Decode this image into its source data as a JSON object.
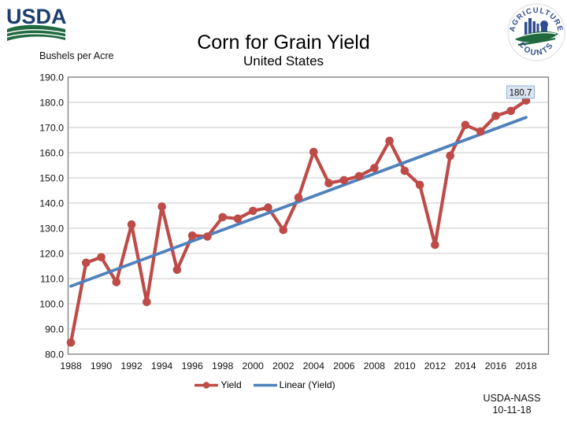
{
  "branding": {
    "usda_logo_text": "USDA",
    "badge_top_text": "AGRICULTURE",
    "badge_bottom_text": "COUNTS"
  },
  "header": {
    "title": "Corn for Grain Yield",
    "subtitle": "United States"
  },
  "chart_data": {
    "type": "line",
    "title": "Corn for Grain Yield",
    "subtitle": "United States",
    "ylabel": "Bushels per Acre",
    "xlabel": "",
    "ylim": [
      80,
      190
    ],
    "ytick_step": 10,
    "grid": "horizontal",
    "legend_position": "bottom-center",
    "x": [
      1988,
      1989,
      1990,
      1991,
      1992,
      1993,
      1994,
      1995,
      1996,
      1997,
      1998,
      1999,
      2000,
      2001,
      2002,
      2003,
      2004,
      2005,
      2006,
      2007,
      2008,
      2009,
      2010,
      2011,
      2012,
      2013,
      2014,
      2015,
      2016,
      2017,
      2018
    ],
    "series": [
      {
        "name": "Yield",
        "color": "#BE4B48",
        "markers": true,
        "values": [
          84.6,
          116.3,
          118.5,
          108.6,
          131.5,
          100.7,
          138.6,
          113.5,
          127.1,
          126.7,
          134.4,
          133.8,
          136.9,
          138.2,
          129.3,
          142.2,
          160.3,
          147.9,
          149.1,
          150.7,
          153.9,
          164.7,
          152.8,
          147.2,
          123.4,
          158.8,
          171.0,
          168.4,
          174.6,
          176.6,
          180.7
        ]
      },
      {
        "name": "Linear (Yield)",
        "color": "#4F81BD",
        "markers": false,
        "trendline": true,
        "start_value": 107.0,
        "end_value": 174.0
      }
    ],
    "end_label": "180.7",
    "ytick_labels": [
      "190.0",
      "180.0",
      "170.0",
      "160.0",
      "150.0",
      "140.0",
      "130.0",
      "120.0",
      "110.0",
      "100.0",
      "90.0",
      "80.0"
    ],
    "xtick_labels": [
      "1988",
      "1990",
      "1992",
      "1994",
      "1996",
      "1998",
      "2000",
      "2002",
      "2004",
      "2006",
      "2008",
      "2010",
      "2012",
      "2014",
      "2016",
      "2018"
    ]
  },
  "footer": {
    "line1": "USDA-NASS",
    "line2": "10-11-18"
  },
  "colors": {
    "series_red": "#BE4B48",
    "series_blue": "#4F81BD",
    "gridline": "#C9C9C9",
    "frame": "#848484",
    "end_label_fill": "#DBE5F1",
    "end_label_border": "#95B3D7",
    "usda_navy": "#1C3E6E",
    "usda_green": "#21693F",
    "badge_blue": "#2E4D8F"
  }
}
